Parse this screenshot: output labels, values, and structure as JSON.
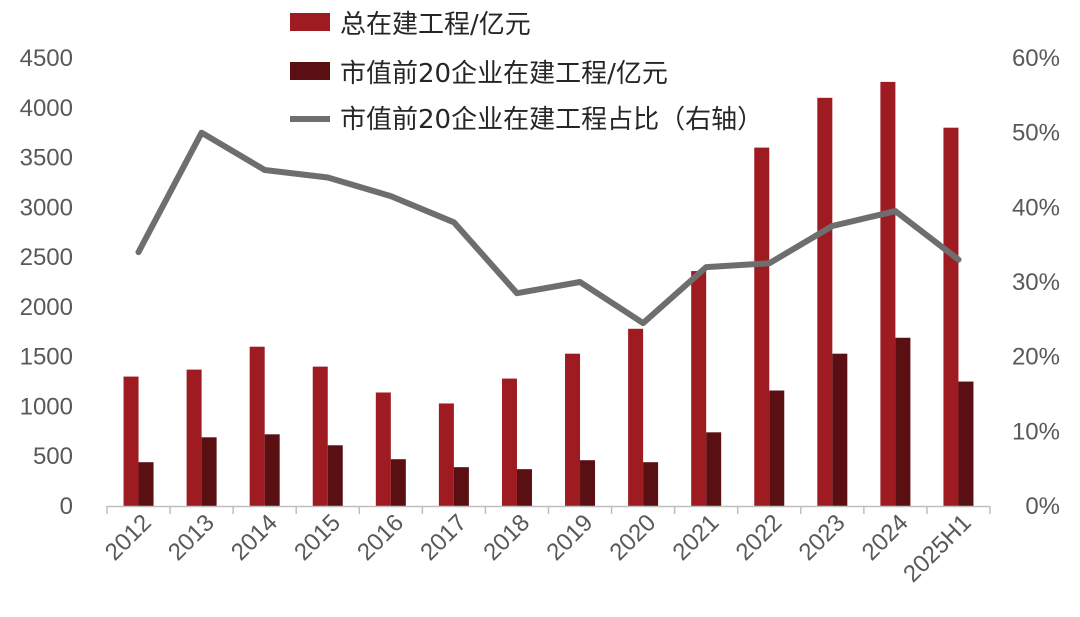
{
  "chart_data": {
    "type": "bar",
    "categories": [
      "2012",
      "2013",
      "2014",
      "2015",
      "2016",
      "2017",
      "2018",
      "2019",
      "2020",
      "2021",
      "2022",
      "2023",
      "2024",
      "2025H1"
    ],
    "series": [
      {
        "name": "总在建工程/亿元",
        "kind": "bar",
        "axis": "left",
        "color": "#9e1b22",
        "values": [
          1300,
          1370,
          1600,
          1400,
          1140,
          1030,
          1280,
          1530,
          1780,
          2360,
          3600,
          4100,
          4260,
          3800
        ]
      },
      {
        "name": "市值前20企业在建工程/亿元",
        "kind": "bar",
        "axis": "left",
        "color": "#5a0f12",
        "values": [
          440,
          690,
          720,
          610,
          470,
          390,
          370,
          460,
          440,
          740,
          1160,
          1530,
          1690,
          1250
        ]
      },
      {
        "name": "市值前20企业在建工程占比（右轴）",
        "kind": "line",
        "axis": "right",
        "color": "#6e6e6e",
        "values": [
          0.34,
          0.5,
          0.45,
          0.44,
          0.415,
          0.38,
          0.285,
          0.3,
          0.245,
          0.32,
          0.325,
          0.375,
          0.395,
          0.33
        ]
      }
    ],
    "y_left": {
      "min": 0,
      "max": 4500,
      "ticks": [
        0,
        500,
        1000,
        1500,
        2000,
        2500,
        3000,
        3500,
        4000,
        4500
      ],
      "tick_labels": [
        "0",
        "500",
        "1000",
        "1500",
        "2000",
        "2500",
        "3000",
        "3500",
        "4000",
        "4500"
      ]
    },
    "y_right": {
      "min": 0,
      "max": 0.6,
      "ticks": [
        0,
        0.1,
        0.2,
        0.3,
        0.4,
        0.5,
        0.6
      ],
      "tick_labels": [
        "0%",
        "10%",
        "20%",
        "30%",
        "40%",
        "50%",
        "60%"
      ]
    },
    "grid": false,
    "legend_position": "top-center"
  }
}
